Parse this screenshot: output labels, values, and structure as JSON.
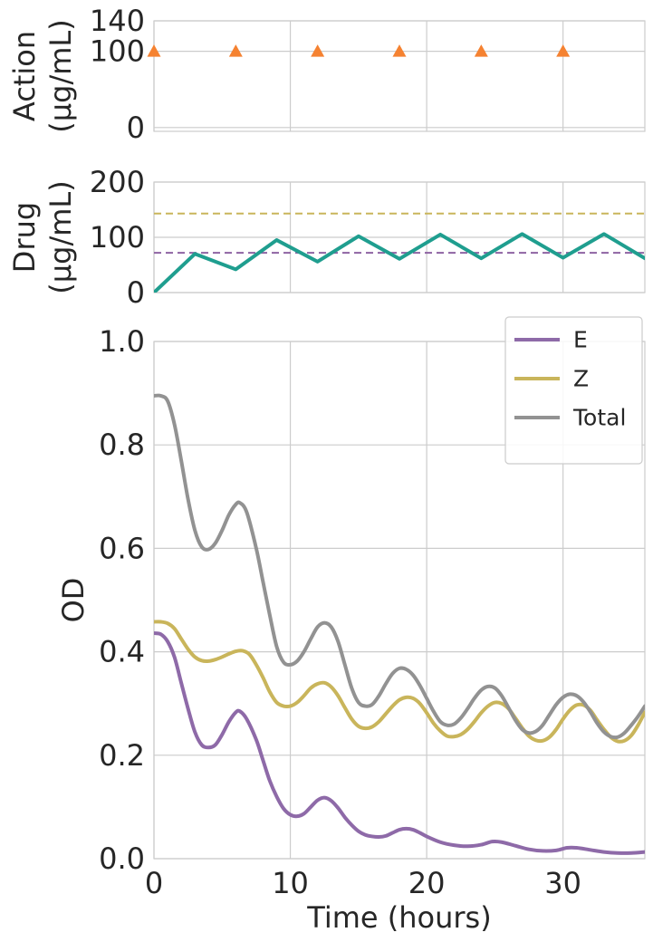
{
  "chart_data": [
    {
      "id": "action",
      "type": "scatter",
      "ylabel_line1": "Action",
      "ylabel_line2": "(µg/mL)",
      "xlim": [
        0,
        36
      ],
      "ylim": [
        -5,
        140
      ],
      "yticks": [
        0,
        100,
        140
      ],
      "ytick_labels": [
        "0",
        "100",
        "140"
      ],
      "xgrid": [
        0,
        10,
        20,
        30
      ],
      "marker": "triangle",
      "color": "#f58231",
      "points": {
        "x": [
          0,
          6,
          12,
          18,
          24,
          30
        ],
        "y": [
          100,
          100,
          100,
          100,
          100,
          100
        ]
      }
    },
    {
      "id": "drug",
      "type": "line",
      "ylabel_line1": "Drug",
      "ylabel_line2": "(µg/mL)",
      "xlim": [
        0,
        36
      ],
      "ylim": [
        0,
        200
      ],
      "yticks": [
        0,
        100,
        200
      ],
      "ytick_labels": [
        "0",
        "100",
        "200"
      ],
      "xgrid": [
        0,
        10,
        20,
        30
      ],
      "series": [
        {
          "color": "#1f9e8f",
          "x": [
            0,
            3,
            6,
            9,
            12,
            15,
            18,
            21,
            24,
            27,
            30,
            33,
            36
          ],
          "y": [
            0,
            70,
            42,
            95,
            56,
            102,
            61,
            105,
            62,
            106,
            63,
            106,
            62
          ]
        }
      ],
      "hlines": [
        {
          "y": 143,
          "color": "#c9b55b",
          "style": "dashed"
        },
        {
          "y": 72,
          "color": "#8e63a3",
          "style": "dashed"
        }
      ]
    },
    {
      "id": "od",
      "type": "line",
      "xlabel": "Time (hours)",
      "ylabel": "OD",
      "xlim": [
        0,
        36
      ],
      "ylim": [
        0,
        1.0
      ],
      "xticks": [
        0,
        10,
        20,
        30
      ],
      "xtick_labels": [
        "0",
        "10",
        "20",
        "30"
      ],
      "yticks": [
        0,
        0.2,
        0.4,
        0.6,
        0.8,
        1.0
      ],
      "ytick_labels": [
        "0.0",
        "0.2",
        "0.4",
        "0.6",
        "0.8",
        "1.0"
      ],
      "legend_position": "top-right",
      "series": [
        {
          "name": "E",
          "color": "#8e6aa8",
          "x": [
            0,
            0.5,
            1,
            1.5,
            2,
            2.5,
            3,
            3.5,
            4,
            4.5,
            5,
            5.5,
            6,
            6.3,
            6.8,
            7.5,
            8,
            8.5,
            9,
            9.5,
            10,
            10.5,
            11,
            11.5,
            12,
            12.5,
            13,
            13.5,
            14,
            14.5,
            15,
            15.5,
            16,
            16.5,
            17,
            17.5,
            18,
            18.5,
            19,
            19.5,
            20,
            21,
            22,
            23,
            24,
            24.8,
            25.5,
            26.5,
            27.5,
            28.5,
            29.5,
            30.3,
            31,
            32,
            33,
            34,
            35,
            36
          ],
          "y": [
            0.436,
            0.434,
            0.42,
            0.39,
            0.34,
            0.29,
            0.245,
            0.22,
            0.215,
            0.22,
            0.24,
            0.265,
            0.283,
            0.285,
            0.27,
            0.23,
            0.19,
            0.15,
            0.12,
            0.097,
            0.085,
            0.082,
            0.087,
            0.1,
            0.113,
            0.118,
            0.112,
            0.098,
            0.08,
            0.065,
            0.053,
            0.046,
            0.043,
            0.042,
            0.044,
            0.05,
            0.056,
            0.058,
            0.056,
            0.05,
            0.043,
            0.032,
            0.026,
            0.024,
            0.027,
            0.033,
            0.032,
            0.025,
            0.018,
            0.015,
            0.016,
            0.021,
            0.021,
            0.017,
            0.013,
            0.011,
            0.011,
            0.013
          ]
        },
        {
          "name": "Z",
          "color": "#c9b55b",
          "x": [
            0,
            0.5,
            1,
            1.5,
            2,
            2.5,
            3,
            3.5,
            4,
            4.5,
            5,
            5.5,
            6,
            6.5,
            7,
            7.5,
            8,
            8.5,
            9,
            9.5,
            10,
            10.5,
            11,
            11.5,
            12,
            12.5,
            13,
            13.5,
            14,
            14.5,
            15,
            15.5,
            16,
            16.5,
            17,
            17.5,
            18,
            18.5,
            19,
            19.5,
            20,
            20.5,
            21,
            21.5,
            22,
            22.5,
            23,
            23.5,
            24,
            24.5,
            25,
            25.5,
            26,
            26.5,
            27,
            27.5,
            28,
            28.5,
            29,
            29.5,
            30,
            30.5,
            31,
            31.5,
            32,
            32.5,
            33,
            33.5,
            34,
            34.5,
            35,
            35.5,
            36
          ],
          "y": [
            0.458,
            0.458,
            0.455,
            0.445,
            0.425,
            0.405,
            0.39,
            0.383,
            0.382,
            0.385,
            0.39,
            0.396,
            0.401,
            0.402,
            0.395,
            0.375,
            0.35,
            0.322,
            0.302,
            0.295,
            0.295,
            0.302,
            0.315,
            0.33,
            0.338,
            0.34,
            0.332,
            0.315,
            0.292,
            0.27,
            0.256,
            0.252,
            0.255,
            0.265,
            0.28,
            0.295,
            0.307,
            0.312,
            0.31,
            0.3,
            0.282,
            0.262,
            0.247,
            0.237,
            0.236,
            0.24,
            0.25,
            0.265,
            0.282,
            0.295,
            0.302,
            0.3,
            0.29,
            0.272,
            0.253,
            0.237,
            0.229,
            0.228,
            0.235,
            0.25,
            0.27,
            0.287,
            0.297,
            0.297,
            0.287,
            0.268,
            0.25,
            0.235,
            0.227,
            0.228,
            0.238,
            0.258,
            0.283
          ]
        },
        {
          "name": "Total",
          "color": "#929292",
          "x": [
            0,
            0.5,
            1,
            1.5,
            2,
            2.5,
            3,
            3.5,
            4,
            4.5,
            5,
            5.5,
            6,
            6.3,
            6.8,
            7.5,
            8,
            8.5,
            9,
            9.5,
            10,
            10.5,
            11,
            11.5,
            12,
            12.5,
            13,
            13.5,
            14,
            14.5,
            15,
            15.5,
            16,
            16.5,
            17,
            17.5,
            18,
            18.5,
            19,
            19.5,
            20,
            20.5,
            21,
            21.5,
            22,
            22.5,
            23,
            23.5,
            24,
            24.5,
            25,
            25.5,
            26,
            26.5,
            27,
            27.5,
            28,
            28.5,
            29,
            29.5,
            30,
            30.5,
            31,
            31.5,
            32,
            32.5,
            33,
            33.5,
            34,
            34.5,
            35,
            35.5,
            36
          ],
          "y": [
            0.895,
            0.895,
            0.885,
            0.84,
            0.77,
            0.695,
            0.635,
            0.603,
            0.598,
            0.61,
            0.635,
            0.665,
            0.685,
            0.688,
            0.67,
            0.6,
            0.535,
            0.47,
            0.41,
            0.38,
            0.375,
            0.382,
            0.4,
            0.425,
            0.448,
            0.456,
            0.448,
            0.42,
            0.375,
            0.33,
            0.302,
            0.295,
            0.298,
            0.315,
            0.338,
            0.358,
            0.368,
            0.366,
            0.355,
            0.335,
            0.31,
            0.285,
            0.265,
            0.258,
            0.26,
            0.272,
            0.29,
            0.31,
            0.326,
            0.333,
            0.33,
            0.315,
            0.292,
            0.268,
            0.25,
            0.243,
            0.246,
            0.258,
            0.278,
            0.298,
            0.312,
            0.318,
            0.315,
            0.303,
            0.284,
            0.262,
            0.245,
            0.236,
            0.235,
            0.243,
            0.258,
            0.275,
            0.295
          ]
        }
      ]
    }
  ]
}
